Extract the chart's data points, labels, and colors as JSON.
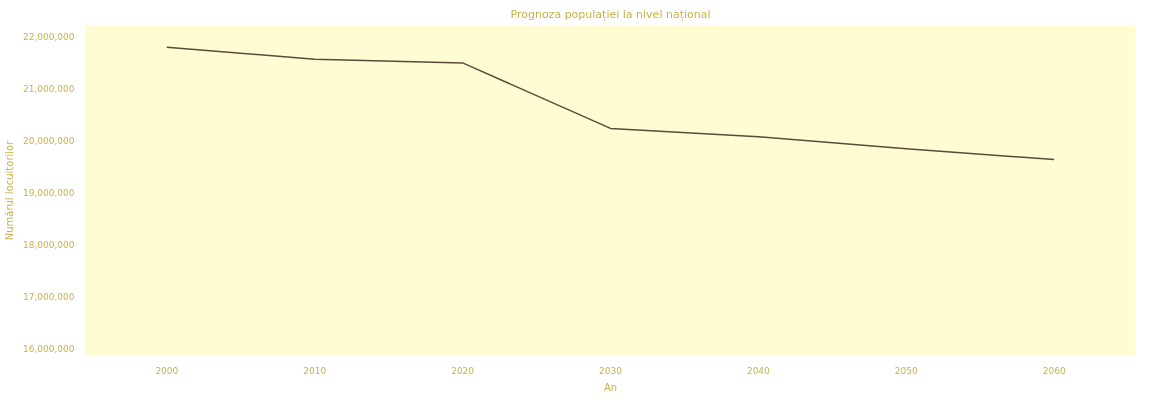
{
  "chart_data": {
    "type": "line",
    "title": "Prognoza populației la nivel național",
    "xlabel": "An",
    "ylabel": "Numărul locuitorilor",
    "categories": [
      "2000",
      "2010",
      "2020",
      "2030",
      "2040",
      "2050",
      "2060"
    ],
    "series": [
      {
        "color": "#5b4a3c",
        "values": [
          21790000,
          21560000,
          21490000,
          20230000,
          20070000,
          19840000,
          19630000
        ]
      }
    ],
    "ylim": [
      15860000,
      22210000
    ],
    "yticks": [
      {
        "value": 16000000,
        "label": "16,000,000"
      },
      {
        "value": 17000000,
        "label": "17,000,000"
      },
      {
        "value": 18000000,
        "label": "18,000,000"
      },
      {
        "value": 19000000,
        "label": "19,000,000"
      },
      {
        "value": 20000000,
        "label": "20,000,000"
      },
      {
        "value": 21000000,
        "label": "21,000,000"
      },
      {
        "value": 22000000,
        "label": "22,000,000"
      }
    ],
    "grid": false,
    "marker": "none",
    "line_style": "solid"
  }
}
